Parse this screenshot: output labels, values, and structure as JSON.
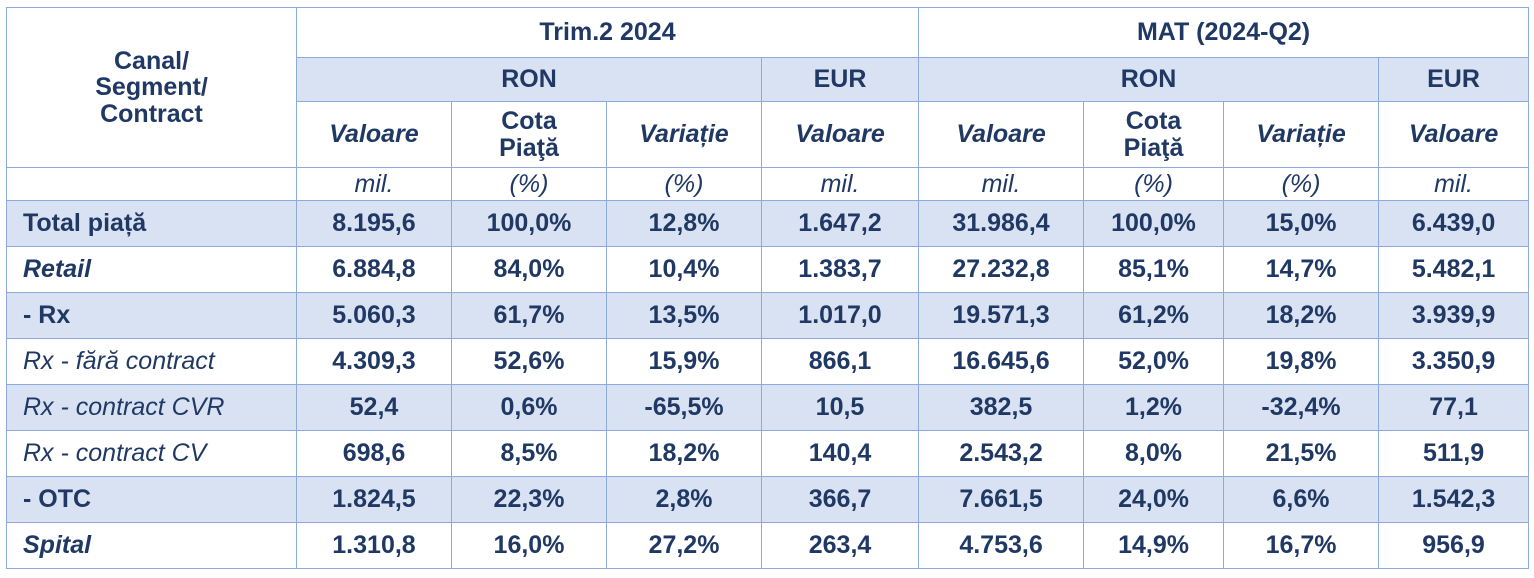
{
  "table": {
    "corner_label": [
      "Canal/",
      "Segment/",
      "Contract"
    ],
    "periods": [
      {
        "label": "Trim.2 2024",
        "ron_label": "RON",
        "eur_label": "EUR"
      },
      {
        "label": "MAT (2024-Q2)",
        "ron_label": "RON",
        "eur_label": "EUR"
      }
    ],
    "metric_headers": [
      {
        "text": "Valoare",
        "style": "italic"
      },
      {
        "text": "Cota Piaţă",
        "style": "plain"
      },
      {
        "text": "Variație",
        "style": "italic"
      },
      {
        "text": "Valoare",
        "style": "italic"
      },
      {
        "text": "Valoare",
        "style": "italic"
      },
      {
        "text": "Cota Piaţă",
        "style": "plain"
      },
      {
        "text": "Variație",
        "style": "italic"
      },
      {
        "text": "Valoare",
        "style": "italic"
      }
    ],
    "units": [
      "mil.",
      "(%)",
      "(%)",
      "mil.",
      "mil.",
      "(%)",
      "(%)",
      "mil."
    ],
    "rows": [
      {
        "label": "Total piață",
        "label_style": "bold",
        "bg": "blue",
        "values": [
          "8.195,6",
          "100,0%",
          "12,8%",
          "1.647,2",
          "31.986,4",
          "100,0%",
          "15,0%",
          "6.439,0"
        ]
      },
      {
        "label": "Retail",
        "label_style": "bolditalic",
        "bg": "white",
        "values": [
          "6.884,8",
          "84,0%",
          "10,4%",
          "1.383,7",
          "27.232,8",
          "85,1%",
          "14,7%",
          "5.482,1"
        ]
      },
      {
        "label": "- Rx",
        "label_style": "bold",
        "bg": "blue",
        "values": [
          "5.060,3",
          "61,7%",
          "13,5%",
          "1.017,0",
          "19.571,3",
          "61,2%",
          "18,2%",
          "3.939,9"
        ]
      },
      {
        "label": "Rx - fără contract",
        "label_style": "italic",
        "bg": "white",
        "values": [
          "4.309,3",
          "52,6%",
          "15,9%",
          "866,1",
          "16.645,6",
          "52,0%",
          "19,8%",
          "3.350,9"
        ]
      },
      {
        "label": "Rx - contract CVR",
        "label_style": "italic",
        "bg": "blue",
        "values": [
          "52,4",
          "0,6%",
          "-65,5%",
          "10,5",
          "382,5",
          "1,2%",
          "-32,4%",
          "77,1"
        ]
      },
      {
        "label": "Rx - contract CV",
        "label_style": "italic",
        "bg": "white",
        "values": [
          "698,6",
          "8,5%",
          "18,2%",
          "140,4",
          "2.543,2",
          "8,0%",
          "21,5%",
          "511,9"
        ]
      },
      {
        "label": "- OTC",
        "label_style": "bold",
        "bg": "blue",
        "values": [
          "1.824,5",
          "22,3%",
          "2,8%",
          "366,7",
          "7.661,5",
          "24,0%",
          "6,6%",
          "1.542,3"
        ]
      },
      {
        "label": "Spital",
        "label_style": "bolditalic",
        "bg": "white",
        "values": [
          "1.310,8",
          "16,0%",
          "27,2%",
          "263,4",
          "4.753,6",
          "14,9%",
          "16,7%",
          "956,9"
        ]
      }
    ],
    "colors": {
      "header_blue": "#d9e2f3",
      "text": "#1f3864",
      "border": "#8eaadb"
    }
  }
}
